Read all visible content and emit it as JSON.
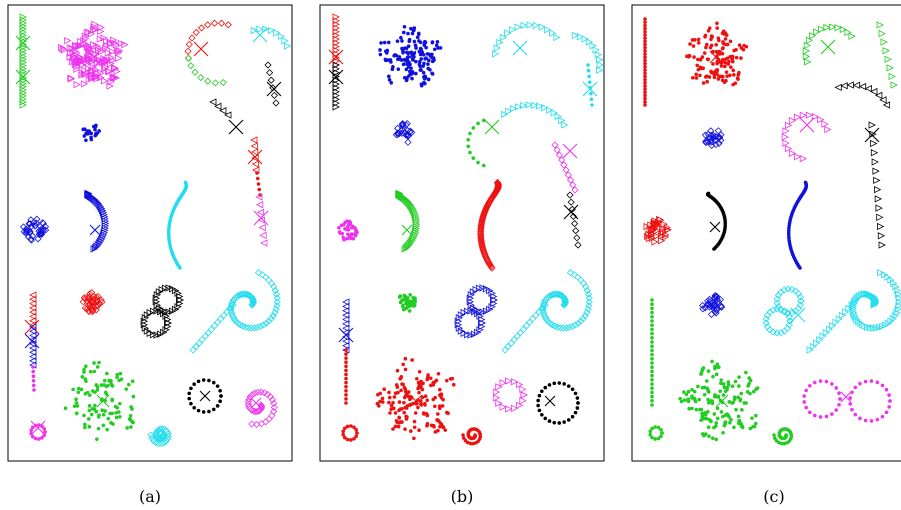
{
  "panels": [
    {
      "caption": "(a)"
    },
    {
      "caption": "(b)"
    },
    {
      "caption": "(c)"
    }
  ],
  "colors": {
    "green": "#22cc22",
    "magenta": "#ee33ee",
    "blue": "#1111dd",
    "red": "#ee1111",
    "cyan": "#22ddee",
    "black": "#000000",
    "frame": "#000000"
  }
}
